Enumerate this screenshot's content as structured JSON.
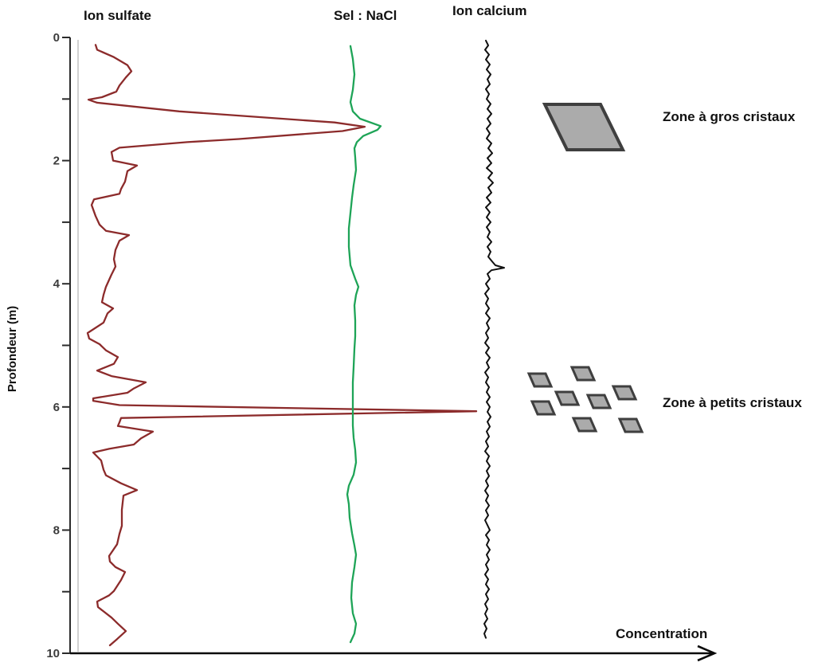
{
  "figure": {
    "ylabel": "Profondeur (m)",
    "xlabel": "Concentration",
    "curve_titles": [
      {
        "id": "sulfate",
        "text": "Ion sulfate"
      },
      {
        "id": "nacl",
        "text": "Sel : NaCl"
      },
      {
        "id": "calcium",
        "text": "Ion calcium"
      }
    ],
    "legend": [
      {
        "label": "Zone à gros cristaux",
        "symbol": "large-crystal-parallelogram"
      },
      {
        "label": "Zone à petits cristaux",
        "symbol": "small-crystals-cluster"
      }
    ],
    "colors": {
      "sulfate": "#8c2b2b",
      "nacl": "#1ea457",
      "calcium": "#0f0f0f",
      "crystal_fill": "#ababab",
      "crystal_stroke": "#3f3f3f",
      "axis": "#2b2b2b",
      "x_axis": "#0a0a0a",
      "guide": "#b8b8b8",
      "tick_label": "#3c3c3c"
    }
  },
  "chart_data": {
    "type": "line",
    "title": "",
    "xlabel": "Concentration",
    "ylabel": "Profondeur (m)",
    "x_units": "arbitrary concentration units (no x ticks; values are display units)",
    "y_units": "m (depth, increasing downward)",
    "y_range": [
      0,
      10
    ],
    "y_ticks_labeled": [
      0,
      2,
      4,
      6,
      8,
      10
    ],
    "y_ticks_minor": [
      1,
      3,
      5,
      7,
      9
    ],
    "grid": false,
    "legend_position": "right",
    "annotations": [
      {
        "label": "Zone à gros cristaux",
        "depth_range_m": [
          1.0,
          1.9
        ],
        "note": "large sulfate/NaCl peak at ~1.45 m"
      },
      {
        "label": "Zone à petits cristaux",
        "depth_range_m": [
          5.4,
          6.6
        ],
        "note": "sharp sulfate spike at ~6.1 m"
      }
    ],
    "series": [
      {
        "name": "Ion sulfate",
        "color": "#8c2b2b",
        "points": [
          [
            0.12,
            120
          ],
          [
            0.2,
            122
          ],
          [
            0.32,
            143
          ],
          [
            0.45,
            160
          ],
          [
            0.55,
            165
          ],
          [
            0.65,
            158
          ],
          [
            0.78,
            150
          ],
          [
            0.88,
            146
          ],
          [
            0.97,
            128
          ],
          [
            1.01,
            111
          ],
          [
            1.06,
            122
          ],
          [
            1.2,
            225
          ],
          [
            1.38,
            420
          ],
          [
            1.45,
            458
          ],
          [
            1.52,
            430
          ],
          [
            1.65,
            300
          ],
          [
            1.7,
            235
          ],
          [
            1.79,
            150
          ],
          [
            1.86,
            140
          ],
          [
            2.0,
            142
          ],
          [
            2.08,
            172
          ],
          [
            2.17,
            160
          ],
          [
            2.34,
            157
          ],
          [
            2.46,
            152
          ],
          [
            2.54,
            150
          ],
          [
            2.63,
            118
          ],
          [
            2.72,
            115
          ],
          [
            2.9,
            120
          ],
          [
            3.04,
            125
          ],
          [
            3.14,
            133
          ],
          [
            3.21,
            162
          ],
          [
            3.3,
            150
          ],
          [
            3.45,
            145
          ],
          [
            3.6,
            143
          ],
          [
            3.72,
            145
          ],
          [
            3.85,
            140
          ],
          [
            4.05,
            133
          ],
          [
            4.18,
            130
          ],
          [
            4.3,
            128
          ],
          [
            4.4,
            142
          ],
          [
            4.48,
            135
          ],
          [
            4.63,
            130
          ],
          [
            4.8,
            110
          ],
          [
            4.89,
            112
          ],
          [
            4.98,
            125
          ],
          [
            5.08,
            133
          ],
          [
            5.19,
            148
          ],
          [
            5.3,
            143
          ],
          [
            5.41,
            122
          ],
          [
            5.5,
            140
          ],
          [
            5.6,
            183
          ],
          [
            5.7,
            168
          ],
          [
            5.77,
            160
          ],
          [
            5.86,
            117
          ],
          [
            5.9,
            117
          ],
          [
            5.97,
            150
          ],
          [
            6.07,
            598
          ],
          [
            6.18,
            152
          ],
          [
            6.25,
            150
          ],
          [
            6.31,
            148
          ],
          [
            6.4,
            192
          ],
          [
            6.51,
            177
          ],
          [
            6.61,
            168
          ],
          [
            6.68,
            137
          ],
          [
            6.74,
            117
          ],
          [
            6.87,
            127
          ],
          [
            7.02,
            130
          ],
          [
            7.11,
            133
          ],
          [
            7.24,
            152
          ],
          [
            7.35,
            172
          ],
          [
            7.44,
            155
          ],
          [
            7.67,
            153
          ],
          [
            7.93,
            153
          ],
          [
            8.06,
            150
          ],
          [
            8.23,
            147
          ],
          [
            8.42,
            137
          ],
          [
            8.51,
            138
          ],
          [
            8.6,
            145
          ],
          [
            8.68,
            157
          ],
          [
            8.81,
            152
          ],
          [
            8.99,
            143
          ],
          [
            9.06,
            137
          ],
          [
            9.16,
            122
          ],
          [
            9.25,
            123
          ],
          [
            9.42,
            140
          ],
          [
            9.52,
            148
          ],
          [
            9.64,
            158
          ],
          [
            9.77,
            147
          ],
          [
            9.87,
            138
          ]
        ]
      },
      {
        "name": "Sel : NaCl",
        "color": "#1ea457",
        "points": [
          [
            0.14,
            440
          ],
          [
            0.35,
            443
          ],
          [
            0.6,
            445
          ],
          [
            0.85,
            443
          ],
          [
            1.05,
            440
          ],
          [
            1.2,
            443
          ],
          [
            1.32,
            452
          ],
          [
            1.44,
            478
          ],
          [
            1.5,
            474
          ],
          [
            1.6,
            456
          ],
          [
            1.7,
            448
          ],
          [
            1.8,
            445
          ],
          [
            1.95,
            446
          ],
          [
            2.15,
            447
          ],
          [
            2.4,
            444
          ],
          [
            2.6,
            442
          ],
          [
            2.85,
            440
          ],
          [
            3.1,
            438
          ],
          [
            3.4,
            438
          ],
          [
            3.7,
            440
          ],
          [
            3.92,
            446
          ],
          [
            4.05,
            450
          ],
          [
            4.18,
            447
          ],
          [
            4.35,
            445
          ],
          [
            4.6,
            446
          ],
          [
            4.85,
            446
          ],
          [
            5.05,
            445
          ],
          [
            5.35,
            444
          ],
          [
            5.6,
            443
          ],
          [
            5.85,
            443
          ],
          [
            6.08,
            443
          ],
          [
            6.3,
            443
          ],
          [
            6.5,
            444
          ],
          [
            6.7,
            446
          ],
          [
            6.9,
            447
          ],
          [
            7.1,
            444
          ],
          [
            7.28,
            438
          ],
          [
            7.42,
            436
          ],
          [
            7.58,
            438
          ],
          [
            7.8,
            439
          ],
          [
            8.05,
            442
          ],
          [
            8.25,
            445
          ],
          [
            8.4,
            447
          ],
          [
            8.6,
            445
          ],
          [
            8.85,
            442
          ],
          [
            9.1,
            441
          ],
          [
            9.35,
            443
          ],
          [
            9.52,
            447
          ],
          [
            9.68,
            445
          ],
          [
            9.82,
            440
          ]
        ]
      },
      {
        "name": "Ion calcium",
        "color": "#0f0f0f",
        "points": [
          [
            0.05,
            610
          ],
          [
            0.13,
            613
          ],
          [
            0.2,
            609
          ],
          [
            0.28,
            614
          ],
          [
            0.36,
            610
          ],
          [
            0.44,
            615
          ],
          [
            0.52,
            611
          ],
          [
            0.6,
            616
          ],
          [
            0.68,
            612
          ],
          [
            0.76,
            615
          ],
          [
            0.84,
            610
          ],
          [
            0.92,
            614
          ],
          [
            1.0,
            611
          ],
          [
            1.08,
            616
          ],
          [
            1.16,
            612
          ],
          [
            1.24,
            617
          ],
          [
            1.32,
            612
          ],
          [
            1.4,
            616
          ],
          [
            1.48,
            611
          ],
          [
            1.56,
            615
          ],
          [
            1.64,
            611
          ],
          [
            1.72,
            617
          ],
          [
            1.8,
            613
          ],
          [
            1.88,
            618
          ],
          [
            1.96,
            612
          ],
          [
            2.04,
            617
          ],
          [
            2.12,
            611
          ],
          [
            2.2,
            618
          ],
          [
            2.28,
            613
          ],
          [
            2.36,
            619
          ],
          [
            2.44,
            613
          ],
          [
            2.52,
            617
          ],
          [
            2.6,
            611
          ],
          [
            2.68,
            616
          ],
          [
            2.76,
            610
          ],
          [
            2.84,
            615
          ],
          [
            2.92,
            611
          ],
          [
            3.0,
            616
          ],
          [
            3.08,
            611
          ],
          [
            3.16,
            615
          ],
          [
            3.24,
            612
          ],
          [
            3.32,
            617
          ],
          [
            3.4,
            612
          ],
          [
            3.48,
            616
          ],
          [
            3.56,
            613
          ],
          [
            3.64,
            618
          ],
          [
            3.7,
            622
          ],
          [
            3.74,
            633
          ],
          [
            3.78,
            617
          ],
          [
            3.84,
            612
          ],
          [
            3.92,
            615
          ],
          [
            4.0,
            610
          ],
          [
            4.08,
            614
          ],
          [
            4.16,
            609
          ],
          [
            4.24,
            613
          ],
          [
            4.32,
            610
          ],
          [
            4.4,
            614
          ],
          [
            4.48,
            610
          ],
          [
            4.56,
            615
          ],
          [
            4.64,
            611
          ],
          [
            4.72,
            614
          ],
          [
            4.8,
            610
          ],
          [
            4.88,
            613
          ],
          [
            4.96,
            609
          ],
          [
            5.04,
            614
          ],
          [
            5.12,
            610
          ],
          [
            5.2,
            615
          ],
          [
            5.28,
            611
          ],
          [
            5.36,
            614
          ],
          [
            5.44,
            609
          ],
          [
            5.52,
            613
          ],
          [
            5.6,
            610
          ],
          [
            5.68,
            614
          ],
          [
            5.76,
            611
          ],
          [
            5.84,
            615
          ],
          [
            5.92,
            611
          ],
          [
            6.0,
            615
          ],
          [
            6.08,
            612
          ],
          [
            6.16,
            616
          ],
          [
            6.24,
            612
          ],
          [
            6.32,
            615
          ],
          [
            6.4,
            611
          ],
          [
            6.48,
            614
          ],
          [
            6.56,
            610
          ],
          [
            6.64,
            613
          ],
          [
            6.72,
            609
          ],
          [
            6.8,
            614
          ],
          [
            6.88,
            611
          ],
          [
            6.96,
            615
          ],
          [
            7.04,
            611
          ],
          [
            7.12,
            614
          ],
          [
            7.2,
            610
          ],
          [
            7.28,
            613
          ],
          [
            7.36,
            609
          ],
          [
            7.44,
            613
          ],
          [
            7.52,
            610
          ],
          [
            7.6,
            614
          ],
          [
            7.68,
            610
          ],
          [
            7.76,
            613
          ],
          [
            7.84,
            609
          ],
          [
            7.92,
            612
          ],
          [
            8.0,
            615
          ],
          [
            8.08,
            610
          ],
          [
            8.16,
            614
          ],
          [
            8.24,
            611
          ],
          [
            8.32,
            615
          ],
          [
            8.4,
            611
          ],
          [
            8.48,
            614
          ],
          [
            8.56,
            610
          ],
          [
            8.64,
            613
          ],
          [
            8.72,
            609
          ],
          [
            8.8,
            613
          ],
          [
            8.88,
            610
          ],
          [
            8.96,
            614
          ],
          [
            9.04,
            610
          ],
          [
            9.12,
            613
          ],
          [
            9.2,
            609
          ],
          [
            9.28,
            612
          ],
          [
            9.36,
            609
          ],
          [
            9.44,
            612
          ],
          [
            9.52,
            608
          ],
          [
            9.6,
            611
          ],
          [
            9.68,
            608
          ],
          [
            9.75,
            610
          ]
        ]
      }
    ]
  }
}
